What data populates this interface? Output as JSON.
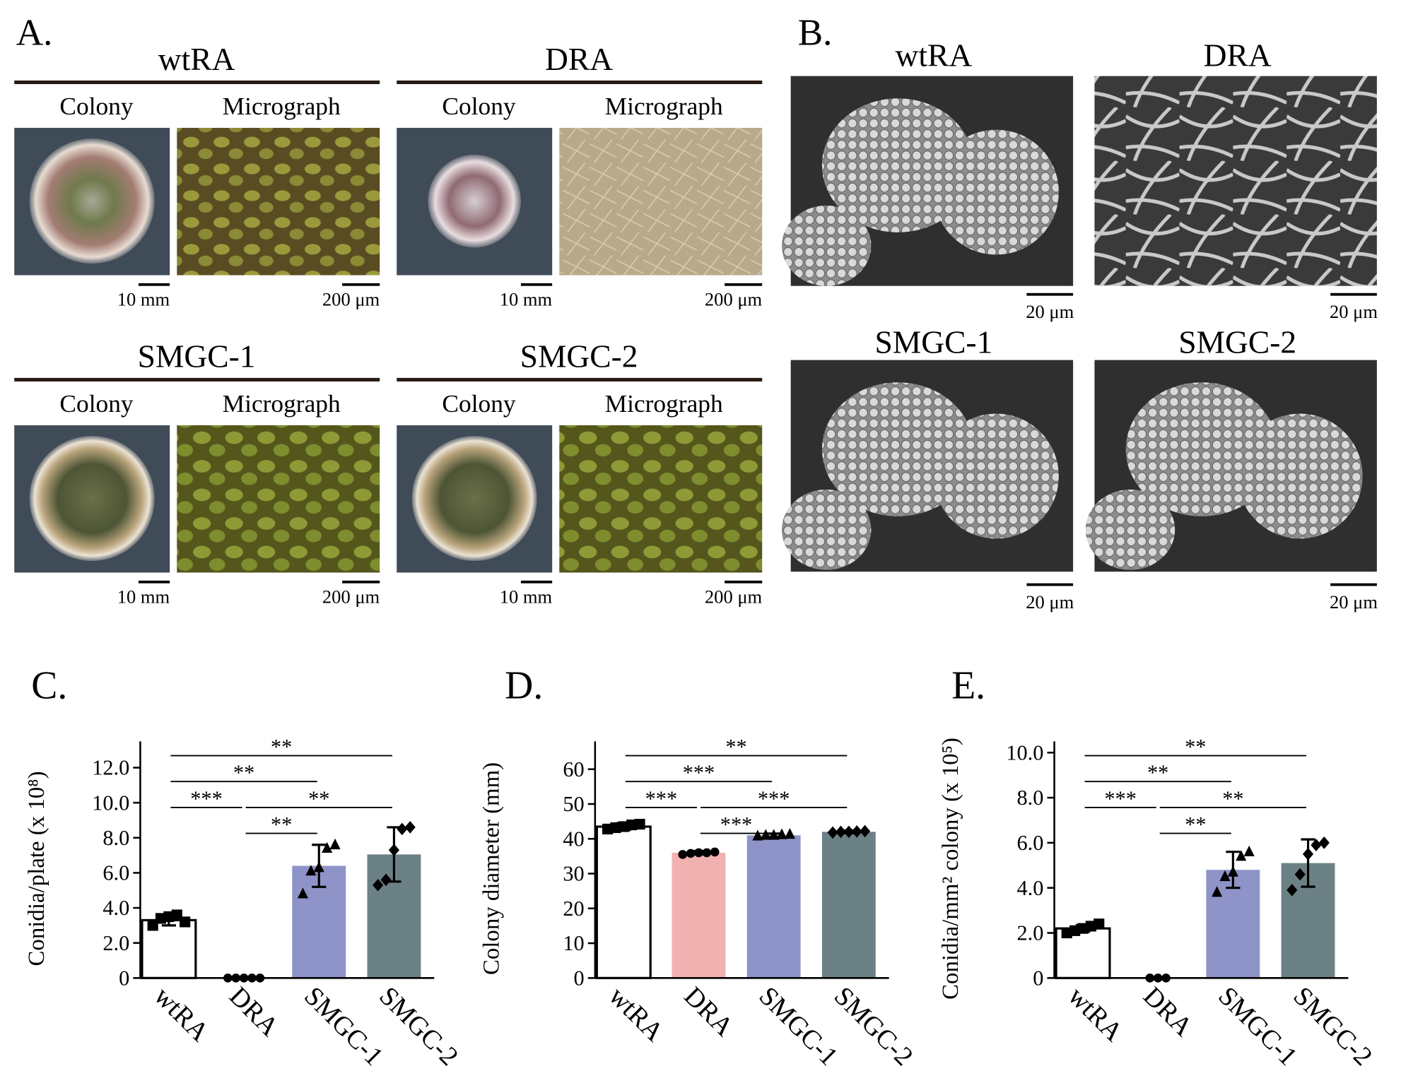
{
  "panel_a": {
    "label": "A.",
    "strains": [
      {
        "name": "wtRA",
        "columns": [
          "Colony",
          "Micrograph"
        ],
        "scales": [
          "10 mm",
          "200 μm"
        ]
      },
      {
        "name": "DRA",
        "columns": [
          "Colony",
          "Micrograph"
        ],
        "scales": [
          "10 mm",
          "200 μm"
        ]
      },
      {
        "name": "SMGC-1",
        "columns": [
          "Colony",
          "Micrograph"
        ],
        "scales": [
          "10 mm",
          "200 μm"
        ]
      },
      {
        "name": "SMGC-2",
        "columns": [
          "Colony",
          "Micrograph"
        ],
        "scales": [
          "10 mm",
          "200 μm"
        ]
      }
    ]
  },
  "panel_b": {
    "label": "B.",
    "strains": [
      {
        "name": "wtRA",
        "scale": "20 μm"
      },
      {
        "name": "DRA",
        "scale": "20 μm"
      },
      {
        "name": "SMGC-1",
        "scale": "20 μm"
      },
      {
        "name": "SMGC-2",
        "scale": "20 μm"
      }
    ]
  },
  "chart_data": [
    {
      "type": "bar",
      "panel": "C.",
      "ylabel": "Conidia/plate (x 10⁸)",
      "categories": [
        "wtRA",
        "DRA",
        "SMGC-1",
        "SMGC-2"
      ],
      "values": [
        3.3,
        0,
        6.4,
        7.05
      ],
      "errors": [
        0.3,
        0,
        1.2,
        1.55
      ],
      "colors": [
        "#ffffff",
        "#ffffff",
        "#8e93c8",
        "#6c8185"
      ],
      "markers": [
        "square",
        "circle",
        "triangle",
        "diamond"
      ],
      "points": [
        [
          3.0,
          3.4,
          3.5,
          3.6,
          3.2
        ],
        [
          0,
          0,
          0,
          0,
          0
        ],
        [
          4.8,
          6.1,
          6.3,
          7.4,
          7.6
        ],
        [
          5.3,
          5.6,
          7.3,
          8.5,
          8.6
        ]
      ],
      "ylim": [
        0,
        13.5
      ],
      "yticks": [
        0,
        {
          "value": 2,
          "label": "2.0"
        },
        {
          "value": 4,
          "label": "4.0"
        },
        {
          "value": 6,
          "label": "6.0"
        },
        {
          "value": 8,
          "label": "8.0"
        },
        {
          "value": 10,
          "label": "10.0"
        },
        {
          "value": 12,
          "label": "12.0"
        }
      ],
      "comparisons": [
        {
          "groups": [
            "wtRA",
            "SMGC-2"
          ],
          "label": "**"
        },
        {
          "groups": [
            "wtRA",
            "SMGC-1"
          ],
          "label": "**"
        },
        {
          "groups": [
            "DRA",
            "SMGC-2"
          ],
          "label": "**"
        },
        {
          "groups": [
            "DRA",
            "SMGC-1"
          ],
          "label": "**"
        },
        {
          "groups": [
            "wtRA",
            "DRA"
          ],
          "label": "***"
        }
      ]
    },
    {
      "type": "bar",
      "panel": "D.",
      "ylabel": "Colony diameter (mm)",
      "categories": [
        "wtRA",
        "DRA",
        "SMGC-1",
        "SMGC-2"
      ],
      "values": [
        43.5,
        36,
        41,
        42
      ],
      "errors": [
        1,
        0.5,
        0.5,
        0.4
      ],
      "colors": [
        "#ffffff",
        "#f2b1b1",
        "#8e93c8",
        "#6c8185"
      ],
      "markers": [
        "square",
        "circle",
        "triangle",
        "diamond"
      ],
      "points": [
        [
          42.8,
          43.2,
          43.5,
          44,
          44.2
        ],
        [
          35.5,
          35.8,
          36,
          36,
          36.2
        ],
        [
          40.8,
          41,
          41,
          41.2,
          41.3
        ],
        [
          41.8,
          42,
          42,
          42.1,
          42.2
        ]
      ],
      "ylim": [
        0,
        68
      ],
      "yticks": [
        0,
        10,
        20,
        30,
        40,
        50,
        60
      ],
      "comparisons": [
        {
          "groups": [
            "wtRA",
            "SMGC-2"
          ],
          "label": "**"
        },
        {
          "groups": [
            "wtRA",
            "SMGC-1"
          ],
          "label": "***"
        },
        {
          "groups": [
            "wtRA",
            "DRA"
          ],
          "label": "***"
        },
        {
          "groups": [
            "DRA",
            "SMGC-2"
          ],
          "label": "***"
        },
        {
          "groups": [
            "DRA",
            "SMGC-1"
          ],
          "label": "***"
        }
      ]
    },
    {
      "type": "bar",
      "panel": "E.",
      "ylabel": "Conidia/mm² colony (x 10⁵)",
      "categories": [
        "wtRA",
        "DRA",
        "SMGC-1",
        "SMGC-2"
      ],
      "values": [
        2.2,
        0,
        4.8,
        5.1
      ],
      "errors": [
        0.15,
        0,
        0.8,
        1.05
      ],
      "colors": [
        "#ffffff",
        "#ffffff",
        "#8e93c8",
        "#6c8185"
      ],
      "markers": [
        "square",
        "circle",
        "triangle",
        "diamond"
      ],
      "points": [
        [
          2.0,
          2.1,
          2.2,
          2.3,
          2.4
        ],
        [
          0,
          0,
          0
        ],
        [
          3.8,
          4.5,
          4.7,
          5.4,
          5.6
        ],
        [
          3.9,
          4.6,
          5.5,
          5.9,
          6.0
        ]
      ],
      "ylim": [
        0,
        10.5
      ],
      "yticks": [
        0,
        {
          "value": 2,
          "label": "2.0"
        },
        {
          "value": 4,
          "label": "4.0"
        },
        {
          "value": 6,
          "label": "6.0"
        },
        {
          "value": 8,
          "label": "8.0"
        },
        {
          "value": 10,
          "label": "10.0"
        }
      ],
      "comparisons": [
        {
          "groups": [
            "wtRA",
            "SMGC-2"
          ],
          "label": "**"
        },
        {
          "groups": [
            "wtRA",
            "SMGC-1"
          ],
          "label": "**"
        },
        {
          "groups": [
            "DRA",
            "SMGC-2"
          ],
          "label": "**"
        },
        {
          "groups": [
            "DRA",
            "SMGC-1"
          ],
          "label": "**"
        },
        {
          "groups": [
            "wtRA",
            "DRA"
          ],
          "label": "***"
        }
      ]
    }
  ]
}
